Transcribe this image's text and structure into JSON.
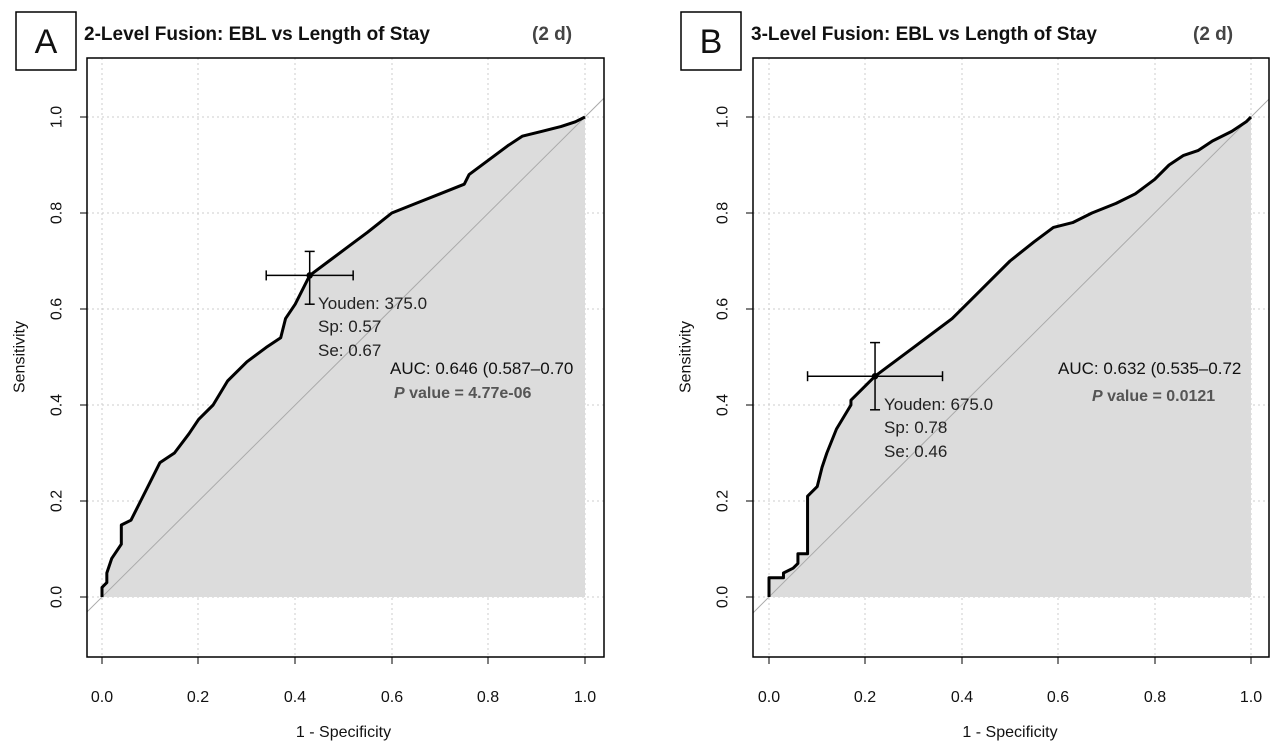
{
  "chart_data": [
    {
      "type": "line",
      "panel_label": "A",
      "title": "2-Level Fusion: EBL vs Length of Stay",
      "title_suffix": "(2 d)",
      "xlabel": "1 - Specificity",
      "ylabel": "Sensitivity",
      "xlim": [
        -0.05,
        1.05
      ],
      "ylim": [
        -0.13,
        1.13
      ],
      "xticks": [
        "0.0",
        "0.2",
        "0.4",
        "0.6",
        "0.8",
        "1.0"
      ],
      "yticks": [
        "0.0",
        "0.2",
        "0.4",
        "0.6",
        "0.8",
        "1.0"
      ],
      "grid": true,
      "series": [
        {
          "x": [
            0.0,
            0.0,
            0.01,
            0.01,
            0.02,
            0.02,
            0.04,
            0.04,
            0.06,
            0.08,
            0.1,
            0.12,
            0.15,
            0.18,
            0.2,
            0.23,
            0.26,
            0.3,
            0.34,
            0.37,
            0.38,
            0.4,
            0.43,
            0.47,
            0.51,
            0.55,
            0.6,
            0.65,
            0.7,
            0.75,
            0.76,
            0.8,
            0.84,
            0.87,
            0.91,
            0.95,
            0.98,
            1.0
          ],
          "y": [
            0.0,
            0.02,
            0.03,
            0.05,
            0.08,
            0.08,
            0.11,
            0.15,
            0.16,
            0.2,
            0.24,
            0.28,
            0.3,
            0.34,
            0.37,
            0.4,
            0.45,
            0.49,
            0.52,
            0.54,
            0.58,
            0.61,
            0.67,
            0.7,
            0.73,
            0.76,
            0.8,
            0.82,
            0.84,
            0.86,
            0.88,
            0.91,
            0.94,
            0.96,
            0.97,
            0.98,
            0.99,
            1.0
          ]
        }
      ],
      "threshold": {
        "x": 0.43,
        "y": 0.67,
        "x_ci": [
          0.34,
          0.52
        ],
        "y_ci": [
          0.61,
          0.72
        ]
      },
      "annotations": [
        "Youden: 375.0",
        "Sp: 0.57",
        "Se: 0.67"
      ],
      "auc_label": "AUC: 0.646 (0.587–0.70",
      "p_label_italic": "P",
      "p_label_rest": " value = 4.77e-06",
      "colors": {
        "curve": "#000000",
        "fill": "#dcdcdc",
        "diagonal": "#aaaaaa",
        "grid": "#cccccc"
      }
    },
    {
      "type": "line",
      "panel_label": "B",
      "title": "3-Level Fusion: EBL vs Length of Stay",
      "title_suffix": "(2 d)",
      "xlabel": "1 - Specificity",
      "ylabel": "Sensitivity",
      "xlim": [
        -0.05,
        1.05
      ],
      "ylim": [
        -0.13,
        1.13
      ],
      "xticks": [
        "0.0",
        "0.2",
        "0.4",
        "0.6",
        "0.8",
        "1.0"
      ],
      "yticks": [
        "0.0",
        "0.2",
        "0.4",
        "0.6",
        "0.8",
        "1.0"
      ],
      "grid": true,
      "series": [
        {
          "x": [
            0.0,
            0.0,
            0.03,
            0.03,
            0.05,
            0.06,
            0.06,
            0.08,
            0.08,
            0.1,
            0.11,
            0.12,
            0.14,
            0.14,
            0.17,
            0.17,
            0.2,
            0.22,
            0.26,
            0.3,
            0.34,
            0.38,
            0.42,
            0.46,
            0.5,
            0.55,
            0.59,
            0.63,
            0.67,
            0.72,
            0.76,
            0.8,
            0.83,
            0.86,
            0.89,
            0.92,
            0.96,
            0.99,
            1.0
          ],
          "y": [
            0.0,
            0.04,
            0.04,
            0.05,
            0.06,
            0.07,
            0.09,
            0.09,
            0.21,
            0.23,
            0.27,
            0.3,
            0.35,
            0.35,
            0.4,
            0.41,
            0.44,
            0.46,
            0.49,
            0.52,
            0.55,
            0.58,
            0.62,
            0.66,
            0.7,
            0.74,
            0.77,
            0.78,
            0.8,
            0.82,
            0.84,
            0.87,
            0.9,
            0.92,
            0.93,
            0.95,
            0.97,
            0.99,
            1.0
          ]
        }
      ],
      "threshold": {
        "x": 0.22,
        "y": 0.46,
        "x_ci": [
          0.08,
          0.36
        ],
        "y_ci": [
          0.39,
          0.53
        ]
      },
      "annotations": [
        "Youden: 675.0",
        "Sp: 0.78",
        "Se: 0.46"
      ],
      "auc_label": "AUC: 0.632 (0.535–0.72",
      "p_label_italic": "P",
      "p_label_rest": " value = 0.0121",
      "colors": {
        "curve": "#000000",
        "fill": "#dcdcdc",
        "diagonal": "#aaaaaa",
        "grid": "#cccccc"
      }
    }
  ]
}
